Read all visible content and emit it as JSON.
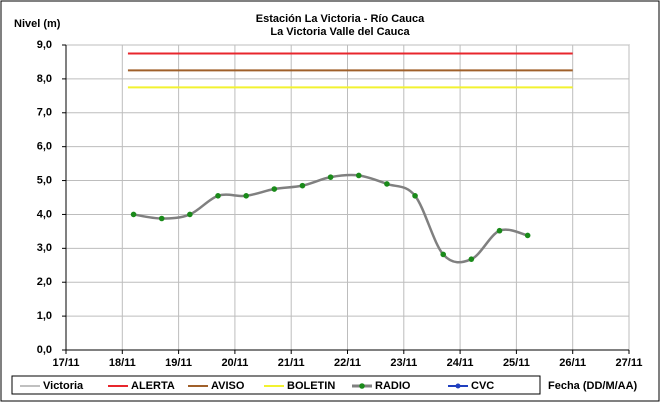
{
  "chart_data": {
    "type": "line",
    "title": "Estación La Victoria - Río Cauca",
    "subtitle": "La Victoria Valle del Cauca",
    "ylabel": "Nivel (m)",
    "xlabel": "Fecha (DD/M/AA)",
    "xlim": [
      17,
      27
    ],
    "xticks": [
      {
        "value": 17,
        "label": "17/11"
      },
      {
        "value": 18,
        "label": "18/11"
      },
      {
        "value": 19,
        "label": "19/11"
      },
      {
        "value": 20,
        "label": "20/11"
      },
      {
        "value": 21,
        "label": "21/11"
      },
      {
        "value": 22,
        "label": "22/11"
      },
      {
        "value": 23,
        "label": "23/11"
      },
      {
        "value": 24,
        "label": "24/11"
      },
      {
        "value": 25,
        "label": "25/11"
      },
      {
        "value": 26,
        "label": "26/11"
      },
      {
        "value": 27,
        "label": "27/11"
      }
    ],
    "ylim": [
      0,
      9
    ],
    "yticks": [
      {
        "value": 0,
        "label": "0,0"
      },
      {
        "value": 1,
        "label": "1,0"
      },
      {
        "value": 2,
        "label": "2,0"
      },
      {
        "value": 3,
        "label": "3,0"
      },
      {
        "value": 4,
        "label": "4,0"
      },
      {
        "value": 5,
        "label": "5,0"
      },
      {
        "value": 6,
        "label": "6,0"
      },
      {
        "value": 7,
        "label": "7,0"
      },
      {
        "value": 8,
        "label": "8,0"
      },
      {
        "value": 9,
        "label": "9,0"
      }
    ],
    "grid": true,
    "legend": "bottom",
    "series": [
      {
        "name": "Victoria",
        "color": "#c0c0c0",
        "x": [],
        "values": []
      },
      {
        "name": "ALERTA",
        "color": "#e8262c",
        "x": [
          18.1,
          26
        ],
        "values": [
          8.75,
          8.75
        ]
      },
      {
        "name": "AVISO",
        "color": "#a0602a",
        "x": [
          18.1,
          26
        ],
        "values": [
          8.25,
          8.25
        ]
      },
      {
        "name": "BOLETIN",
        "color": "#f2f230",
        "x": [
          18.1,
          26
        ],
        "values": [
          7.75,
          7.75
        ]
      },
      {
        "name": "RADIO",
        "color": "#808080",
        "marker": "#1a8a1a",
        "smooth": true,
        "x": [
          18.2,
          18.7,
          19.2,
          19.7,
          20.2,
          20.7,
          21.2,
          21.7,
          22.2,
          22.7,
          23.2,
          23.7,
          24.2,
          24.7,
          25.2
        ],
        "values": [
          4.0,
          3.88,
          4.0,
          4.55,
          4.55,
          4.75,
          4.85,
          5.1,
          5.15,
          4.9,
          4.55,
          2.82,
          2.68,
          3.52,
          3.38
        ]
      },
      {
        "name": "CVC",
        "color": "#1f3fbf",
        "x": [],
        "values": []
      }
    ]
  }
}
